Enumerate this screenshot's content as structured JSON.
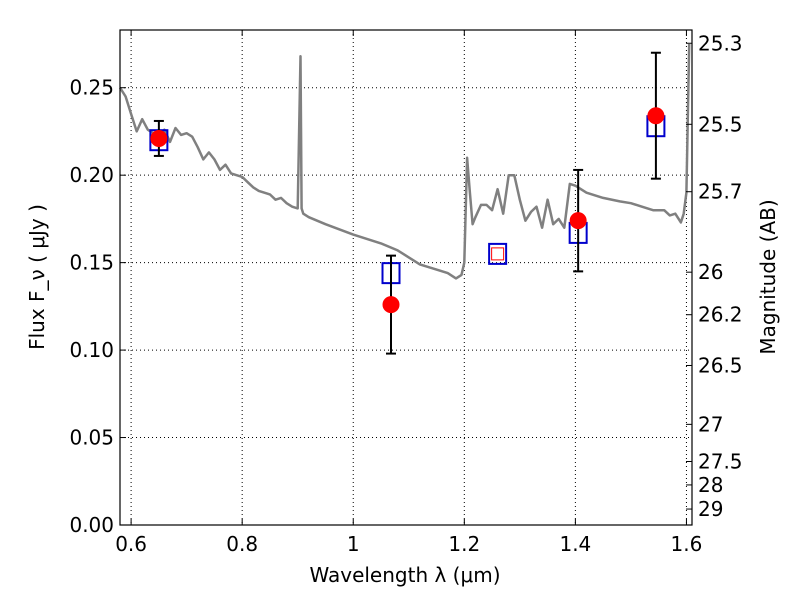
{
  "chart_data": {
    "type": "scatter",
    "xlabel": "Wavelength  λ (μm)",
    "ylabel_left": "Flux  F_ν  ( μJy )",
    "ylabel_right": "Magnitude (AB)",
    "xlim": [
      0.58,
      1.61
    ],
    "ylim": [
      0.0,
      0.283
    ],
    "grid": true,
    "x_ticks": [
      "0.6",
      "0.8",
      "1",
      "1.2",
      "1.4",
      "1.6"
    ],
    "x_tick_values": [
      0.6,
      0.8,
      1.0,
      1.2,
      1.4,
      1.6
    ],
    "y_ticks": [
      "0.00",
      "0.05",
      "0.10",
      "0.15",
      "0.20",
      "0.25"
    ],
    "y_tick_values": [
      0.0,
      0.05,
      0.1,
      0.15,
      0.2,
      0.25
    ],
    "right_ticks": [
      {
        "label": "25.3",
        "mag": 25.3
      },
      {
        "label": "25.5",
        "mag": 25.5
      },
      {
        "label": "25.7",
        "mag": 25.7
      },
      {
        "label": "26",
        "mag": 26.0
      },
      {
        "label": "26.2",
        "mag": 26.2
      },
      {
        "label": "26.5",
        "mag": 26.5
      },
      {
        "label": "27",
        "mag": 27.0
      },
      {
        "label": "27.5",
        "mag": 27.5
      },
      {
        "label": "28",
        "mag": 28.0
      },
      {
        "label": "29",
        "mag": 29.0
      }
    ],
    "colors": {
      "model": "#808080",
      "observed": "#ff0000",
      "synthetic": "#0000cc",
      "errorbar": "#000000"
    },
    "model_spectrum": {
      "name": "",
      "x": [
        0.58,
        0.59,
        0.6,
        0.61,
        0.62,
        0.63,
        0.64,
        0.65,
        0.66,
        0.67,
        0.68,
        0.69,
        0.7,
        0.71,
        0.72,
        0.73,
        0.74,
        0.75,
        0.76,
        0.77,
        0.78,
        0.79,
        0.8,
        0.81,
        0.82,
        0.83,
        0.84,
        0.85,
        0.86,
        0.87,
        0.88,
        0.89,
        0.9,
        0.905,
        0.907,
        0.91,
        0.92,
        0.95,
        1.0,
        1.05,
        1.08,
        1.1,
        1.12,
        1.15,
        1.17,
        1.185,
        1.195,
        1.2,
        1.205,
        1.21,
        1.215,
        1.22,
        1.23,
        1.24,
        1.25,
        1.26,
        1.27,
        1.28,
        1.29,
        1.3,
        1.31,
        1.32,
        1.33,
        1.34,
        1.35,
        1.36,
        1.37,
        1.38,
        1.39,
        1.4,
        1.42,
        1.45,
        1.48,
        1.5,
        1.52,
        1.54,
        1.56,
        1.57,
        1.58,
        1.59,
        1.595,
        1.6,
        1.605
      ],
      "y": [
        0.25,
        0.245,
        0.235,
        0.225,
        0.232,
        0.226,
        0.224,
        0.222,
        0.226,
        0.219,
        0.227,
        0.223,
        0.224,
        0.222,
        0.216,
        0.209,
        0.213,
        0.209,
        0.203,
        0.206,
        0.201,
        0.2,
        0.199,
        0.196,
        0.193,
        0.191,
        0.19,
        0.189,
        0.186,
        0.187,
        0.184,
        0.182,
        0.181,
        0.268,
        0.181,
        0.178,
        0.176,
        0.172,
        0.166,
        0.161,
        0.157,
        0.153,
        0.149,
        0.146,
        0.144,
        0.141,
        0.143,
        0.15,
        0.21,
        0.19,
        0.172,
        0.176,
        0.183,
        0.183,
        0.18,
        0.192,
        0.178,
        0.2,
        0.2,
        0.186,
        0.174,
        0.179,
        0.182,
        0.17,
        0.186,
        0.172,
        0.175,
        0.17,
        0.195,
        0.194,
        0.19,
        0.187,
        0.185,
        0.184,
        0.182,
        0.18,
        0.18,
        0.177,
        0.178,
        0.173,
        0.178,
        0.19,
        0.275
      ]
    },
    "observed": {
      "name": "",
      "points": [
        {
          "x": 0.65,
          "y": 0.221,
          "err": 0.01
        },
        {
          "x": 1.068,
          "y": 0.126,
          "err": 0.028
        },
        {
          "x": 1.405,
          "y": 0.174,
          "err": 0.029
        },
        {
          "x": 1.545,
          "y": 0.234,
          "err": 0.036
        }
      ]
    },
    "synthetic": {
      "name": "",
      "points": [
        {
          "x": 0.65,
          "y": 0.22
        },
        {
          "x": 1.068,
          "y": 0.144
        },
        {
          "x": 1.26,
          "y": 0.155,
          "inner_red": true
        },
        {
          "x": 1.405,
          "y": 0.167
        },
        {
          "x": 1.545,
          "y": 0.228
        }
      ]
    }
  }
}
